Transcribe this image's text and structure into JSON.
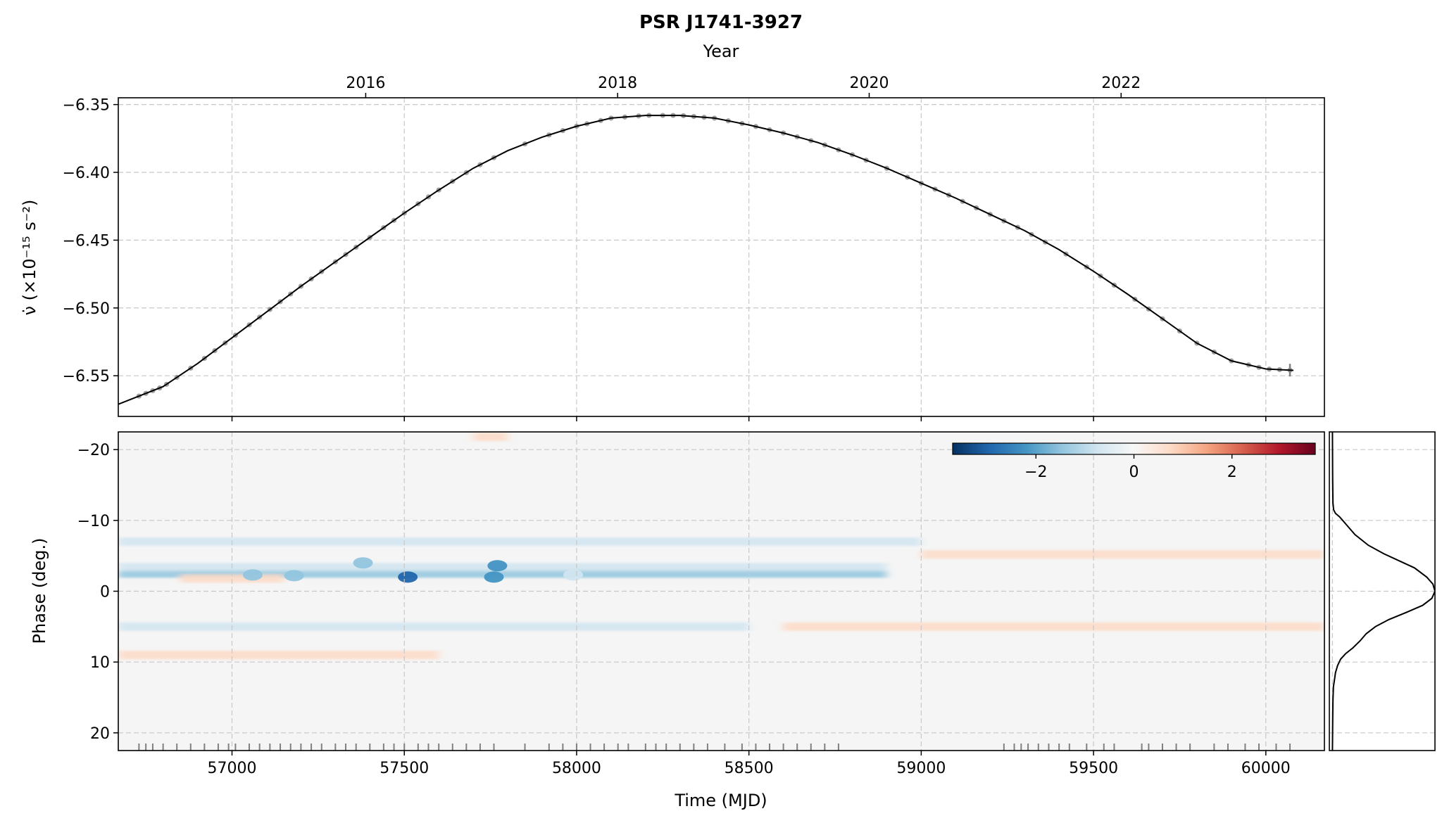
{
  "title": "PSR J1741-3927",
  "chart_data": [
    {
      "type": "line",
      "panel": "spin-down-rate",
      "top_axis": {
        "label": "Year",
        "ticks": [
          "2016",
          "2018",
          "2020",
          "2022"
        ],
        "tick_positions_mjd": [
          57388,
          58119,
          58849,
          59580
        ]
      },
      "xlabel": "",
      "ylabel": "ν̇ (×10⁻¹⁵ s⁻²)",
      "xlim": [
        56670,
        60170
      ],
      "ylim": [
        -6.58,
        -6.345
      ],
      "yticks": [
        -6.35,
        -6.4,
        -6.45,
        -6.5,
        -6.55
      ],
      "ytick_labels": [
        "−6.35",
        "−6.40",
        "−6.45",
        "−6.50",
        "−6.55"
      ],
      "grid": true,
      "series": [
        {
          "x": [
            56670,
            56800,
            56900,
            57000,
            57100,
            57200,
            57300,
            57400,
            57500,
            57600,
            57700,
            57800,
            57900,
            58000,
            58100,
            58200,
            58300,
            58400,
            58500,
            58600,
            58700,
            58800,
            58900,
            59000,
            59100,
            59200,
            59300,
            59400,
            59500,
            59600,
            59700,
            59800,
            59900,
            60000,
            60080
          ],
          "y": [
            -6.571,
            -6.558,
            -6.541,
            -6.522,
            -6.503,
            -6.484,
            -6.466,
            -6.448,
            -6.43,
            -6.413,
            -6.397,
            -6.384,
            -6.374,
            -6.366,
            -6.36,
            -6.358,
            -6.358,
            -6.36,
            -6.365,
            -6.371,
            -6.378,
            -6.387,
            -6.397,
            -6.408,
            -6.419,
            -6.431,
            -6.443,
            -6.457,
            -6.473,
            -6.49,
            -6.508,
            -6.526,
            -6.539,
            -6.545,
            -6.546
          ]
        }
      ],
      "points": {
        "x": [
          56730,
          56750,
          56770,
          56790,
          56810,
          56840,
          56880,
          56920,
          56950,
          56980,
          57010,
          57050,
          57080,
          57110,
          57140,
          57170,
          57200,
          57230,
          57260,
          57300,
          57330,
          57360,
          57400,
          57440,
          57470,
          57500,
          57540,
          57570,
          57600,
          57640,
          57680,
          57720,
          57760,
          57850,
          57920,
          57960,
          58000,
          58030,
          58070,
          58100,
          58140,
          58180,
          58210,
          58250,
          58280,
          58310,
          58340,
          58370,
          58400,
          58440,
          58480,
          58520,
          58560,
          58600,
          58640,
          58680,
          58720,
          58760,
          58800,
          58840,
          58900,
          58960,
          59000,
          59040,
          59080,
          59120,
          59160,
          59200,
          59240,
          59280,
          59320,
          59360,
          59420,
          59480,
          59520,
          59560,
          59620,
          59660,
          59700,
          59750,
          59800,
          59850,
          59900,
          59950,
          59980,
          60010,
          60040,
          60070
        ]
      }
    },
    {
      "type": "heatmap",
      "panel": "profile-residuals",
      "xlabel": "Time (MJD)",
      "ylabel": "Phase (deg.)",
      "xlim": [
        56670,
        60170
      ],
      "ylim": [
        -22.5,
        22.5
      ],
      "xticks": [
        57000,
        57500,
        58000,
        58500,
        59000,
        59500,
        60000
      ],
      "yticks": [
        -20,
        -10,
        0,
        10,
        20
      ],
      "ytick_labels": [
        "−20",
        "−10",
        "0",
        "10",
        "20"
      ],
      "colorbar": {
        "cmap": "RdBu_r",
        "range": [
          -3.7,
          3.7
        ],
        "ticks": [
          -2,
          0,
          2
        ],
        "tick_labels": [
          "−2",
          "0",
          "2"
        ],
        "placement": "top-right"
      },
      "grid": true,
      "bands": [
        {
          "phase": -2.5,
          "x_start": 56670,
          "x_end": 58900,
          "value": -1.2
        },
        {
          "phase": -3.4,
          "x_start": 56670,
          "x_end": 58900,
          "value": -0.8
        },
        {
          "phase": -1.8,
          "x_start": 56850,
          "x_end": 57150,
          "value": 1.0
        },
        {
          "phase": 5.0,
          "x_start": 56670,
          "x_end": 58500,
          "value": -0.7
        },
        {
          "phase": 5.0,
          "x_start": 58600,
          "x_end": 60170,
          "value": 0.9
        },
        {
          "phase": -5.2,
          "x_start": 59000,
          "x_end": 60170,
          "value": 0.7
        },
        {
          "phase": -7.0,
          "x_start": 56670,
          "x_end": 59000,
          "value": -0.4
        },
        {
          "phase": 9.0,
          "x_start": 56670,
          "x_end": 57600,
          "value": 0.5
        },
        {
          "phase": -21.8,
          "x_start": 57700,
          "x_end": 57800,
          "value": 0.9
        }
      ],
      "spots": [
        {
          "x": 57510,
          "phase": -2.0,
          "value": -3.2
        },
        {
          "x": 57760,
          "phase": -2.0,
          "value": -2.3
        },
        {
          "x": 57770,
          "phase": -3.6,
          "value": -2.0
        },
        {
          "x": 57060,
          "phase": -2.3,
          "value": -1.6
        },
        {
          "x": 57180,
          "phase": -2.2,
          "value": -1.6
        },
        {
          "x": 57380,
          "phase": -4.0,
          "value": -1.3
        },
        {
          "x": 57990,
          "phase": -2.3,
          "value": -1.0
        }
      ],
      "rug_mjd": [
        56730,
        56750,
        56770,
        56800,
        56840,
        56880,
        56920,
        56960,
        56990,
        57010,
        57050,
        57080,
        57110,
        57140,
        57170,
        57200,
        57230,
        57260,
        57300,
        57330,
        57360,
        57400,
        57440,
        57470,
        57500,
        57540,
        57570,
        57600,
        57640,
        57680,
        57720,
        57760,
        57850,
        57920,
        57960,
        58000,
        58040,
        58080,
        58120,
        58150,
        58200,
        58230,
        58260,
        58300,
        58340,
        58380,
        58430,
        58480,
        58520,
        58560,
        58600,
        58640,
        58680,
        58720,
        58760,
        59240,
        59270,
        59290,
        59310,
        59340,
        59370,
        59400,
        59430,
        59480,
        59530,
        59560,
        59640,
        59660,
        59700,
        59740,
        59780,
        59850,
        59890,
        59940,
        59980,
        60030,
        60070
      ]
    },
    {
      "type": "line",
      "panel": "mean-profile",
      "xlim": [
        -0.03,
        1.0
      ],
      "ylim": [
        -22.5,
        22.5
      ],
      "grid": true,
      "series": [
        {
          "x": [
            0.0,
            0.002,
            0.005,
            0.012,
            0.03,
            0.07,
            0.13,
            0.22,
            0.35,
            0.5,
            0.65,
            0.8,
            0.92,
            0.98,
            1.0,
            0.97,
            0.88,
            0.72,
            0.55,
            0.42,
            0.33,
            0.27,
            0.2,
            0.13,
            0.08,
            0.05,
            0.03,
            0.02,
            0.01,
            0.005,
            0.003,
            0.0
          ],
          "y": [
            -22.5,
            -16,
            -12.5,
            -11.5,
            -11.0,
            -10.5,
            -9.5,
            -8.0,
            -6.5,
            -5.3,
            -4.3,
            -3.3,
            -2.0,
            -1.0,
            0.0,
            1.0,
            2.0,
            3.0,
            4.0,
            5.0,
            6.0,
            7.0,
            8.0,
            8.8,
            9.6,
            10.5,
            11.5,
            12.5,
            13.5,
            15.5,
            18.0,
            22.5
          ]
        }
      ]
    }
  ]
}
